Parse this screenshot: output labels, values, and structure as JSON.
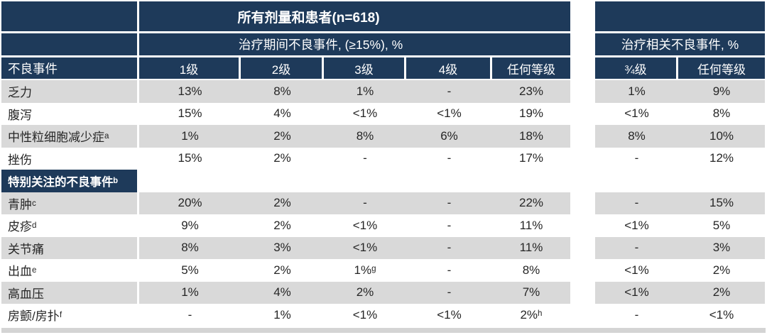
{
  "colors": {
    "header_navy": "#1e3a5a",
    "row_gray": "#d9d9d9",
    "row_white": "#ffffff",
    "text_dark": "#262626",
    "text_light": "#ffffff"
  },
  "chart_data": {
    "type": "table",
    "title": "所有剂量和患者(n=618)",
    "group_headers": [
      "治疗期间不良事件, (≥15%), %",
      "治疗相关不良事件, %"
    ],
    "corner_label": "不良事件",
    "columns": [
      "1级",
      "2级",
      "3级",
      "4级",
      "任何等级"
    ],
    "related_columns": [
      "¾级",
      "任何等级"
    ],
    "rows": [
      {
        "label": "乏力",
        "section": false,
        "values": [
          "13%",
          "8%",
          "1%",
          "-",
          "23%"
        ],
        "related": [
          "1%",
          "9%"
        ]
      },
      {
        "label": "腹泻",
        "section": false,
        "values": [
          "15%",
          "4%",
          "<1%",
          "<1%",
          "19%"
        ],
        "related": [
          "<1%",
          "8%"
        ]
      },
      {
        "label": "中性粒细胞减少症ᵃ",
        "section": false,
        "values": [
          "1%",
          "2%",
          "8%",
          "6%",
          "18%"
        ],
        "related": [
          "8%",
          "10%"
        ]
      },
      {
        "label": "挫伤",
        "section": false,
        "values": [
          "15%",
          "2%",
          "-",
          "-",
          "17%"
        ],
        "related": [
          "-",
          "12%"
        ]
      },
      {
        "label": "特别关注的不良事件ᵇ",
        "section": true,
        "values": [
          "",
          "",
          "",
          "",
          ""
        ],
        "related": [
          "",
          ""
        ]
      },
      {
        "label": "青肿ᶜ",
        "section": false,
        "values": [
          "20%",
          "2%",
          "-",
          "-",
          "22%"
        ],
        "related": [
          "-",
          "15%"
        ]
      },
      {
        "label": "皮疹ᵈ",
        "section": false,
        "values": [
          "9%",
          "2%",
          "<1%",
          "-",
          "11%"
        ],
        "related": [
          "<1%",
          "5%"
        ]
      },
      {
        "label": "关节痛",
        "section": false,
        "values": [
          "8%",
          "3%",
          "<1%",
          "-",
          "11%"
        ],
        "related": [
          "-",
          "3%"
        ]
      },
      {
        "label": "出血ᵉ",
        "section": false,
        "values": [
          "5%",
          "2%",
          "1%ᵍ",
          "-",
          "8%"
        ],
        "related": [
          "<1%",
          "2%"
        ]
      },
      {
        "label": "高血压",
        "section": false,
        "values": [
          "1%",
          "4%",
          "2%",
          "-",
          "7%"
        ],
        "related": [
          "<1%",
          "2%"
        ]
      },
      {
        "label": "房颤/房扑ᶠ",
        "section": false,
        "values": [
          "-",
          "1%",
          "<1%",
          "<1%",
          "2%ʰ"
        ],
        "related": [
          "-",
          "<1%"
        ]
      }
    ]
  }
}
